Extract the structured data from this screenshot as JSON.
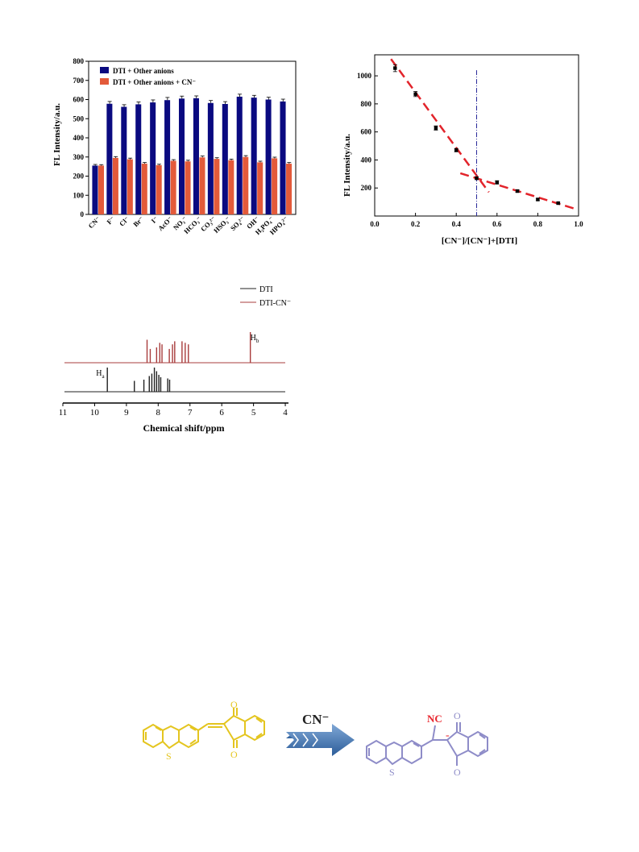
{
  "chart_data": [
    {
      "type": "bar",
      "ylabel": "FL Intensity/a.u.",
      "ylim": [
        0,
        800
      ],
      "yticks": [
        0,
        100,
        200,
        300,
        400,
        500,
        600,
        700,
        800
      ],
      "categories": [
        "CN⁻",
        "F⁻",
        "Cl⁻",
        "Br⁻",
        "I⁻",
        "AcO⁻",
        "NO₃⁻",
        "HCO₃⁻",
        "CO₃²⁻",
        "HSO₃⁻",
        "SO₄²⁻",
        "OH⁻",
        "H₂PO₄⁻",
        "HPO₄²⁻"
      ],
      "legend_position": "top-left",
      "series": [
        {
          "name": "DTI + Other anions",
          "color": "#0a0a80",
          "values": [
            255,
            578,
            562,
            575,
            585,
            597,
            605,
            607,
            582,
            577,
            615,
            610,
            600,
            590
          ],
          "errors": [
            6,
            12,
            11,
            12,
            13,
            14,
            13,
            12,
            13,
            12,
            13,
            12,
            12,
            12
          ]
        },
        {
          "name": "DTI + Other anions + CN⁻",
          "color": "#e35a3a",
          "values": [
            255,
            295,
            288,
            265,
            257,
            280,
            277,
            298,
            290,
            283,
            300,
            272,
            293,
            265
          ],
          "errors": [
            5,
            7,
            6,
            6,
            5,
            6,
            6,
            7,
            6,
            6,
            7,
            6,
            6,
            6
          ]
        }
      ]
    },
    {
      "type": "scatter",
      "xlabel": "[CN⁻]/[CN⁻]+[DTI]",
      "ylabel": "FL Intensity/a.u.",
      "xlim": [
        0.0,
        1.0
      ],
      "ylim": [
        0,
        1150
      ],
      "xticks": [
        "0.0",
        "0.2",
        "0.4",
        "0.6",
        "0.8",
        "1.0"
      ],
      "yticks": [
        200,
        400,
        600,
        800,
        1000
      ],
      "x": [
        0.1,
        0.2,
        0.3,
        0.4,
        0.5,
        0.6,
        0.7,
        0.8,
        0.9
      ],
      "y": [
        1055,
        870,
        628,
        470,
        270,
        240,
        178,
        118,
        92
      ],
      "errors": [
        25,
        18,
        15,
        12,
        10,
        12,
        8,
        8,
        6
      ],
      "fit_lines": [
        {
          "x": [
            0.08,
            0.56
          ],
          "y": [
            1120,
            170
          ]
        },
        {
          "x": [
            0.42,
            0.99
          ],
          "y": [
            305,
            48
          ]
        }
      ],
      "vertical_line_x": 0.5
    },
    {
      "type": "line",
      "xlabel": "Chemical shift/ppm",
      "xlim": [
        11,
        3.9
      ],
      "xticks": [
        "11",
        "10",
        "9",
        "8",
        "7",
        "6",
        "5",
        "4"
      ],
      "series": [
        {
          "name": "DTI",
          "color": "#222222",
          "peaks": [
            [
              9.6,
              1.0
            ],
            [
              8.75,
              0.45
            ],
            [
              8.45,
              0.5
            ],
            [
              8.28,
              0.65
            ],
            [
              8.2,
              0.75
            ],
            [
              8.12,
              1.0
            ],
            [
              8.05,
              0.85
            ],
            [
              7.98,
              0.7
            ],
            [
              7.92,
              0.6
            ],
            [
              7.7,
              0.55
            ],
            [
              7.64,
              0.5
            ]
          ]
        },
        {
          "name": "DTI-CN⁻",
          "color": "#a83c3c",
          "peaks": [
            [
              8.35,
              0.75
            ],
            [
              8.25,
              0.45
            ],
            [
              8.05,
              0.5
            ],
            [
              7.95,
              0.65
            ],
            [
              7.88,
              0.6
            ],
            [
              7.65,
              0.45
            ],
            [
              7.55,
              0.6
            ],
            [
              7.48,
              0.7
            ],
            [
              7.25,
              0.7
            ],
            [
              7.15,
              0.65
            ],
            [
              7.05,
              0.6
            ],
            [
              5.1,
              1.0
            ]
          ]
        }
      ],
      "annotations": [
        {
          "text": "H",
          "sub": "a",
          "x": 9.6
        },
        {
          "text": "H",
          "sub": "b",
          "x": 5.1
        }
      ]
    }
  ],
  "scheme": {
    "reagent": "CN⁻",
    "product_group": "NC",
    "charge": "-",
    "atom_s": "S",
    "atom_o": "O"
  }
}
